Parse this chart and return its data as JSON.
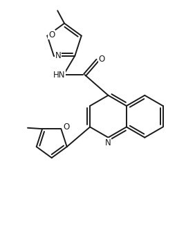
{
  "bg_color": "#ffffff",
  "line_color": "#1a1a1a",
  "text_color": "#1a1a1a",
  "line_width": 1.4,
  "dbo": 0.07,
  "font_size": 8.5,
  "fig_width": 2.82,
  "fig_height": 3.28,
  "dpi": 100,
  "xlim": [
    0,
    10
  ],
  "ylim": [
    0,
    11.6
  ]
}
